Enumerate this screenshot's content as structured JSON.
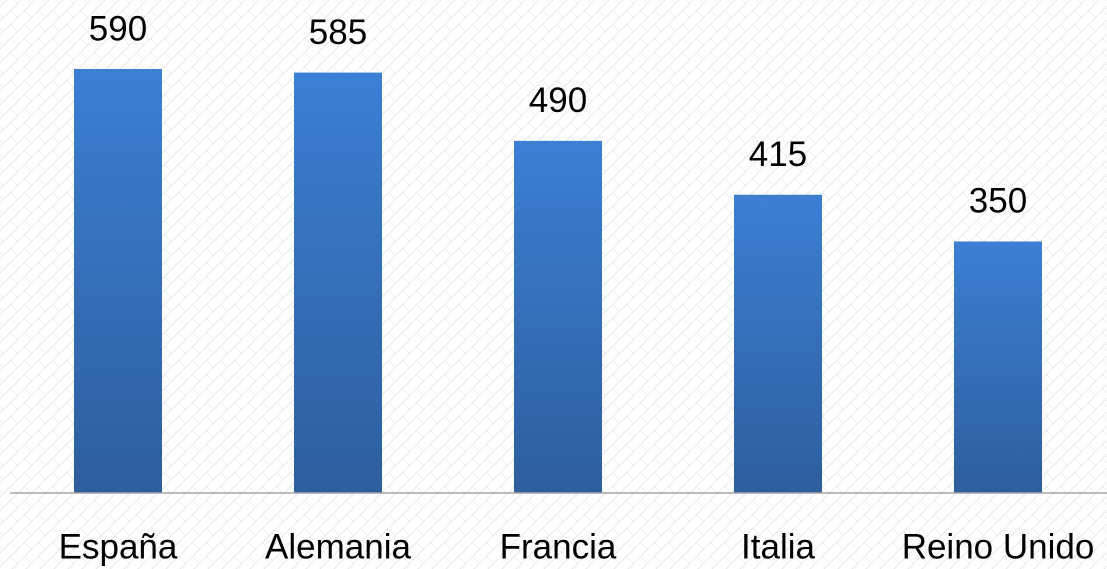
{
  "chart_data": {
    "type": "bar",
    "categories": [
      "España",
      "Alemania",
      "Francia",
      "Italia",
      "Reino Unido"
    ],
    "values": [
      590,
      585,
      490,
      415,
      350
    ],
    "color": "#3a78c9"
  }
}
